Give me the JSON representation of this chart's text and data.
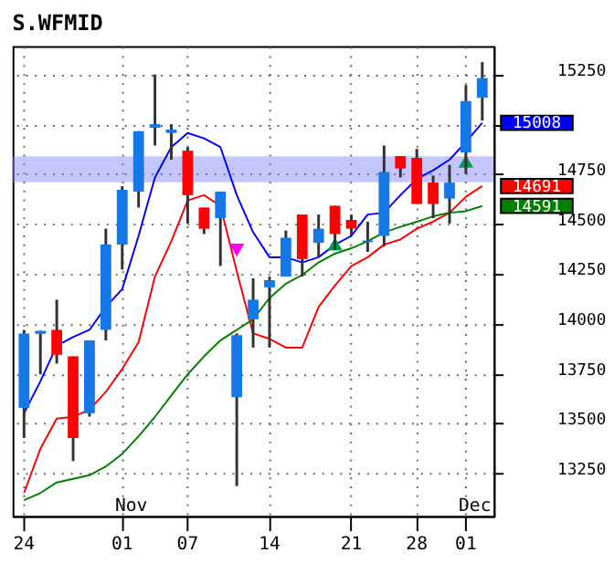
{
  "chart_data": {
    "type": "candlestick",
    "title": "S.WFMID",
    "categories": [
      "24",
      null,
      null,
      null,
      null,
      null,
      "01",
      null,
      null,
      null,
      "07",
      null,
      null,
      null,
      null,
      "14",
      null,
      null,
      null,
      null,
      "21",
      null,
      null,
      null,
      "28",
      null,
      null,
      "01",
      null
    ],
    "ohlc": [
      [
        13579,
        13970,
        13428,
        13952
      ],
      [
        13950,
        13965,
        13747,
        13965
      ],
      [
        13970,
        14121,
        13801,
        13845
      ],
      [
        13837,
        13837,
        13312,
        13428
      ],
      [
        13552,
        13917,
        13535,
        13917
      ],
      [
        13970,
        14477,
        13917,
        14397
      ],
      [
        14397,
        14690,
        14272,
        14672
      ],
      [
        14663,
        14966,
        14583,
        14966
      ],
      [
        14983,
        15250,
        14894,
        15001
      ],
      [
        14957,
        15001,
        14823,
        14974
      ],
      [
        14868,
        14886,
        14503,
        14645
      ],
      [
        14583,
        14583,
        14450,
        14477
      ],
      [
        14530,
        14663,
        14290,
        14663
      ],
      [
        13632,
        13952,
        13187,
        13943
      ],
      [
        14023,
        14228,
        13881,
        14121
      ],
      [
        14183,
        14237,
        13881,
        14219
      ],
      [
        14237,
        14468,
        14237,
        14432
      ],
      [
        14548,
        14548,
        14237,
        14325
      ],
      [
        14406,
        14548,
        14334,
        14477
      ],
      [
        14592,
        14592,
        14370,
        14450
      ],
      [
        14521,
        14548,
        14441,
        14477
      ],
      [
        14410,
        14512,
        14361,
        14418
      ],
      [
        14441,
        14894,
        14388,
        14761
      ],
      [
        14841,
        14841,
        14734,
        14779
      ],
      [
        14832,
        14877,
        14601,
        14601
      ],
      [
        14708,
        14743,
        14530,
        14601
      ],
      [
        14628,
        14797,
        14503,
        14708
      ],
      [
        14859,
        15197,
        14752,
        15117
      ],
      [
        15134,
        15312,
        15019,
        15232
      ]
    ],
    "colors": [
      "#1478e6",
      "#1478e6",
      "#ff0000",
      "#ff0000",
      "#1478e6",
      "#1478e6",
      "#1478e6",
      "#1478e6",
      "#1478e6",
      "#1478e6",
      "#ff0000",
      "#ff0000",
      "#1478e6",
      "#1478e6",
      "#1478e6",
      "#1478e6",
      "#1478e6",
      "#ff0000",
      "#1478e6",
      "#ff0000",
      "#ff0000",
      "#1478e6",
      "#1478e6",
      "#ff0000",
      "#ff0000",
      "#ff0000",
      "#1478e6",
      "#1478e6",
      "#1478e6"
    ],
    "series": [
      {
        "type": "line",
        "color": "#0000ff",
        "values": [
          13552,
          13712,
          13890,
          13934,
          13970,
          14085,
          14174,
          14441,
          14734,
          14886,
          14957,
          14930,
          14886,
          14645,
          14459,
          14334,
          14334,
          14308,
          14334,
          14397,
          14441,
          14548,
          14557,
          14645,
          14726,
          14770,
          14823,
          14912,
          15008
        ],
        "value_labels": [
          null,
          null,
          null,
          null,
          null,
          null,
          null,
          null,
          null,
          null,
          null,
          null,
          null,
          null,
          null,
          null,
          null,
          null,
          null,
          null,
          null,
          null,
          null,
          null,
          null,
          null,
          null,
          null,
          "15008"
        ]
      },
      {
        "type": "line",
        "color": "#ff0000",
        "values": [
          13152,
          13374,
          13525,
          13534,
          13570,
          13659,
          13774,
          13908,
          14237,
          14414,
          14619,
          14645,
          14592,
          14263,
          13952,
          13925,
          13881,
          13881,
          14085,
          14192,
          14290,
          14334,
          14397,
          14423,
          14477,
          14512,
          14557,
          14637,
          14691
        ],
        "value_labels": [
          null,
          null,
          null,
          null,
          null,
          null,
          null,
          null,
          null,
          null,
          null,
          null,
          null,
          null,
          null,
          null,
          null,
          null,
          null,
          null,
          null,
          null,
          null,
          null,
          null,
          null,
          null,
          null,
          "14691"
        ]
      },
      {
        "type": "line",
        "color": "#008000",
        "values": [
          13116,
          13152,
          13205,
          13223,
          13241,
          13285,
          13348,
          13436,
          13534,
          13641,
          13747,
          13837,
          13917,
          13970,
          14023,
          14130,
          14201,
          14245,
          14308,
          14352,
          14379,
          14414,
          14459,
          14486,
          14512,
          14539,
          14557,
          14565,
          14591
        ],
        "value_labels": [
          null,
          null,
          null,
          null,
          null,
          null,
          null,
          null,
          null,
          null,
          null,
          null,
          null,
          null,
          null,
          null,
          null,
          null,
          null,
          null,
          null,
          null,
          null,
          null,
          null,
          null,
          null,
          null,
          "14591"
        ]
      },
      {
        "type": "scatter",
        "color": "#ff00ff",
        "marker": "triangle_down",
        "values": [
          null,
          null,
          null,
          null,
          null,
          null,
          null,
          null,
          null,
          null,
          null,
          null,
          null,
          14370,
          null,
          null,
          null,
          null,
          null,
          null,
          null,
          null,
          null,
          null,
          null,
          null,
          null,
          null,
          null
        ]
      },
      {
        "type": "scatter",
        "color": "#00a050",
        "marker": "triangle",
        "values": [
          null,
          null,
          null,
          null,
          null,
          null,
          null,
          null,
          null,
          null,
          null,
          null,
          null,
          null,
          null,
          null,
          null,
          null,
          null,
          14400,
          null,
          null,
          null,
          null,
          null,
          null,
          null,
          14815,
          null
        ]
      }
    ],
    "bands": [
      {
        "axis": "y",
        "from": 14710,
        "to": 14840,
        "color": "#8080ff"
      }
    ],
    "annotations": [
      "Nov",
      "Dec"
    ],
    "ylim": [
      13037,
      15392
    ],
    "yticks": [
      13250,
      13500,
      13750,
      14000,
      14250,
      14500,
      14750,
      {
        "value": 15000,
        "label": null
      },
      15250
    ],
    "grid": true
  }
}
